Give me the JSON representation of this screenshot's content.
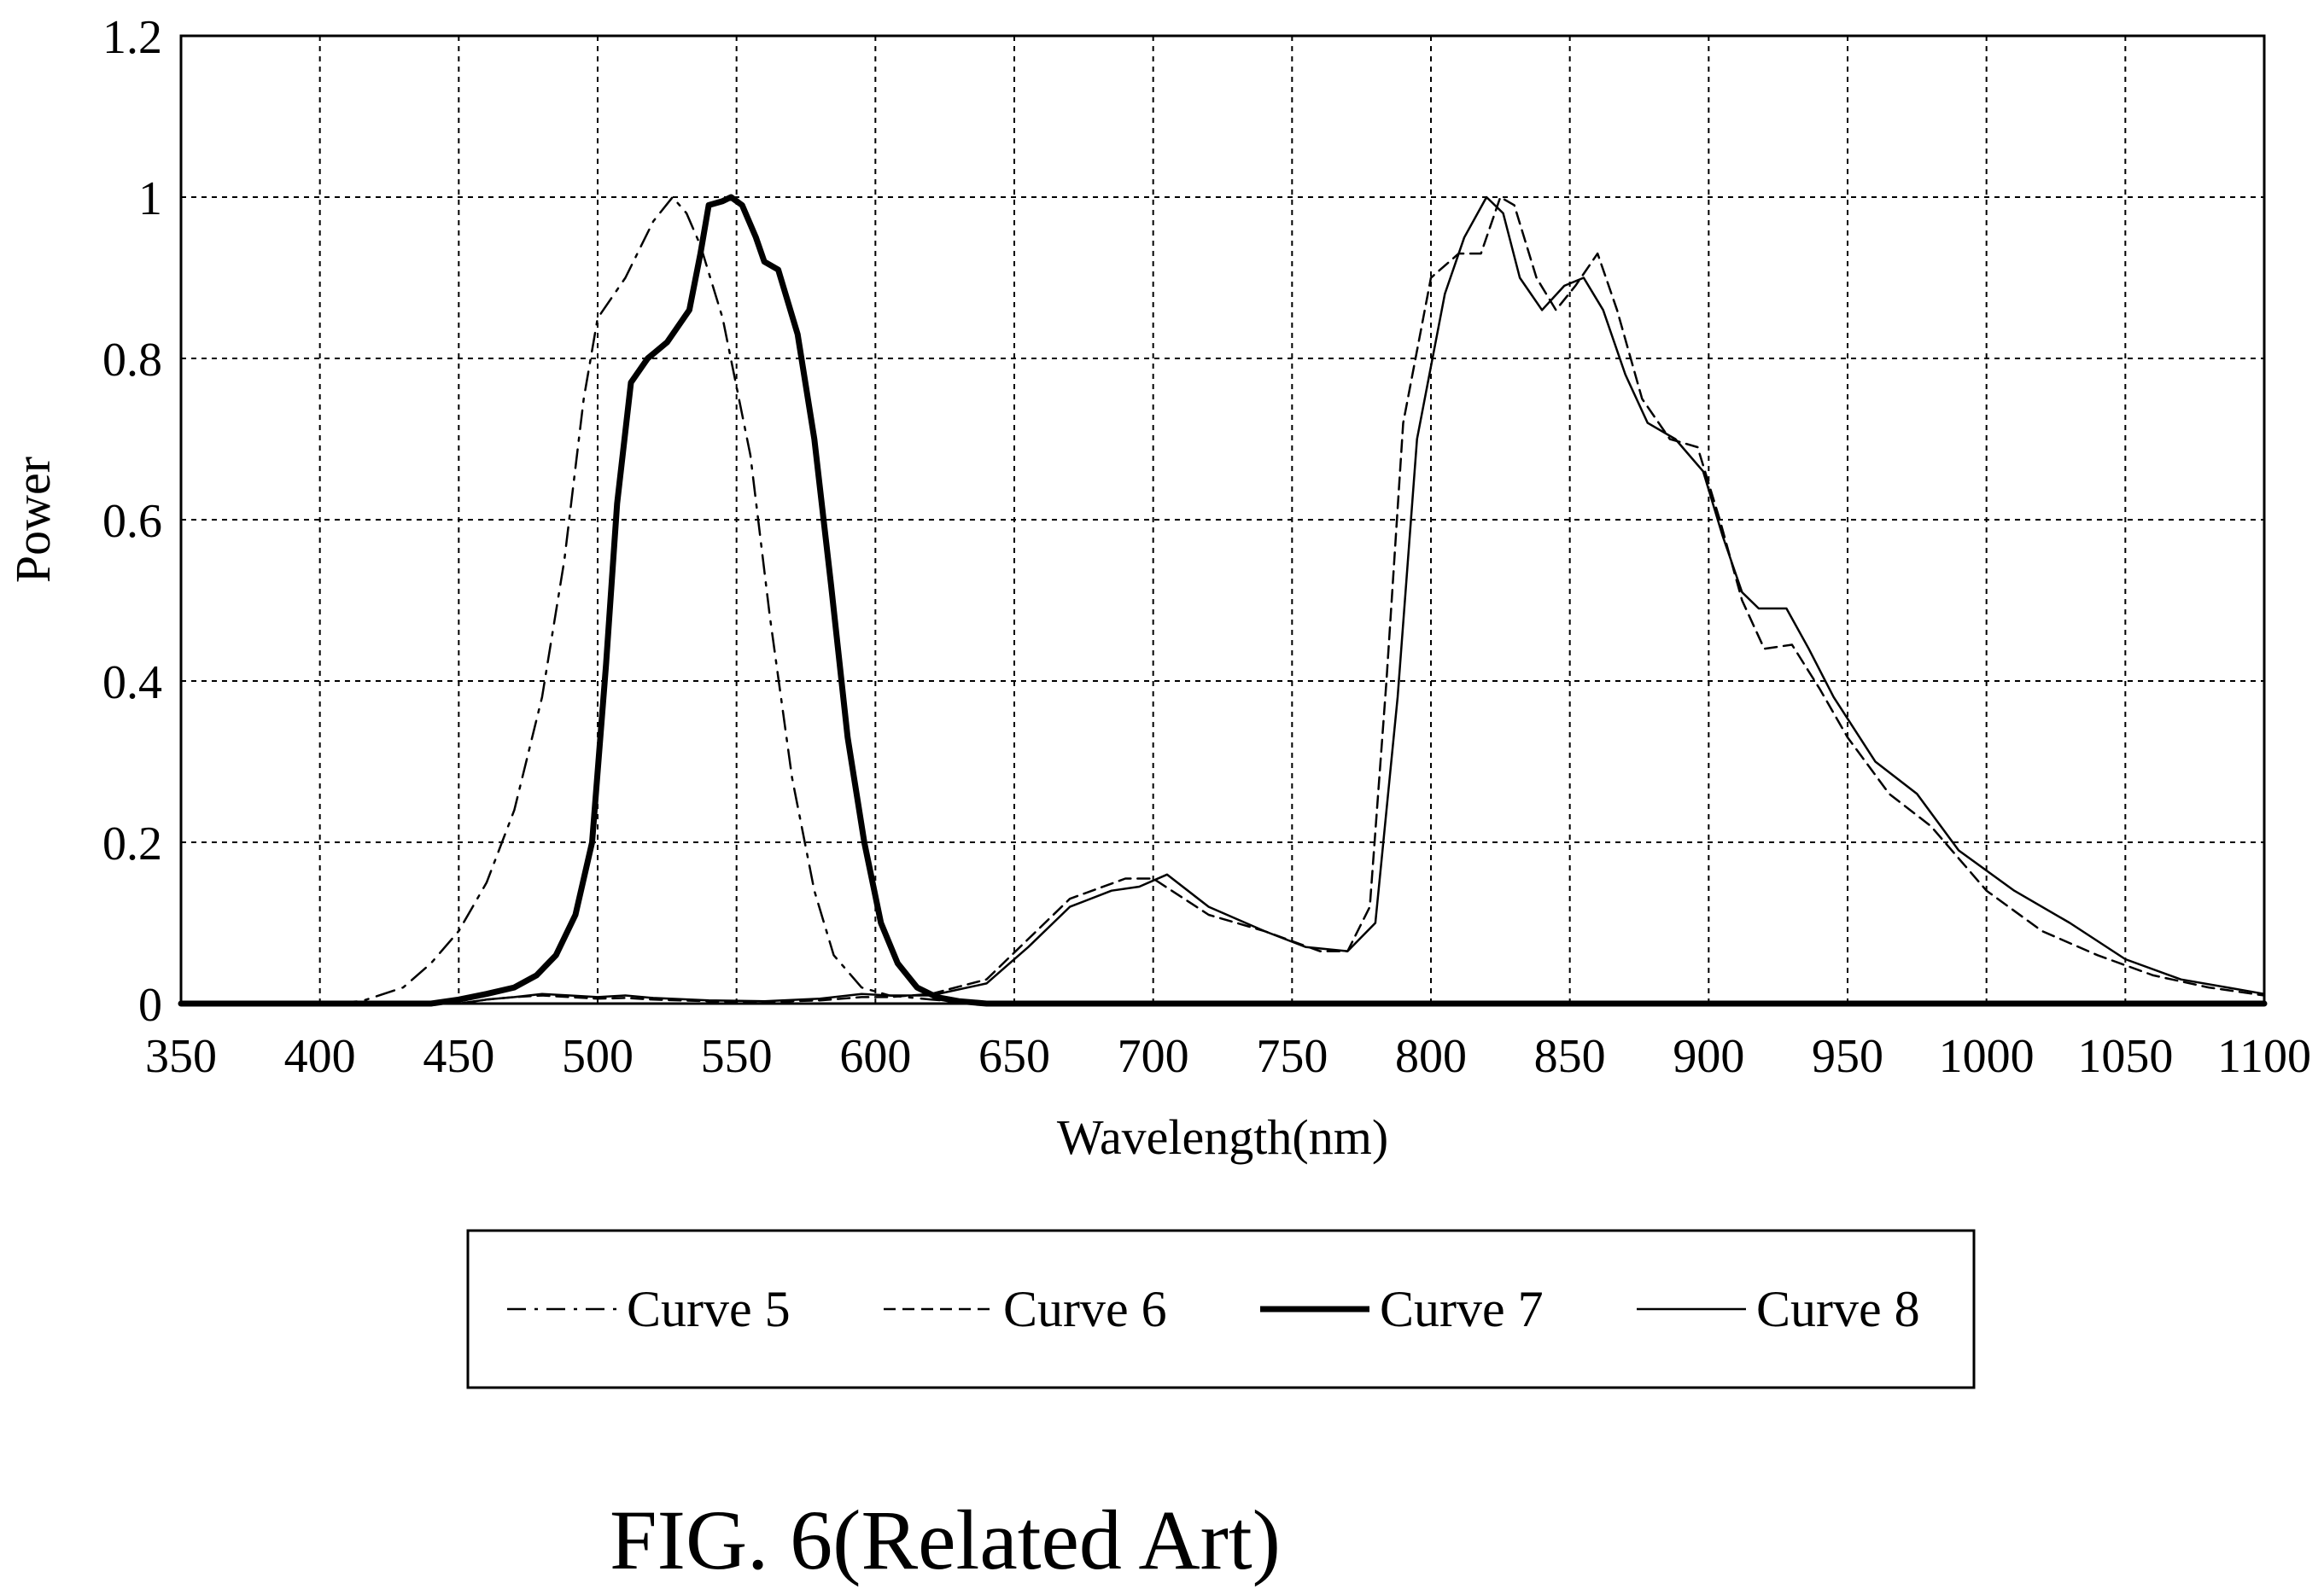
{
  "chart_data": {
    "type": "line",
    "xlabel": "Wavelength(nm)",
    "ylabel": "Power",
    "xlim": [
      350,
      1100
    ],
    "ylim": [
      0,
      1.2
    ],
    "x_ticks": [
      350,
      400,
      450,
      500,
      550,
      600,
      650,
      700,
      750,
      800,
      850,
      900,
      950,
      1000,
      1050,
      1100
    ],
    "y_ticks": [
      0,
      0.2,
      0.4,
      0.6,
      0.8,
      1,
      1.2
    ],
    "grid": true,
    "legend_position": "bottom",
    "series": [
      {
        "name": "Curve 5",
        "style": "dash-dot",
        "color": "#000000",
        "points": [
          [
            350,
            0
          ],
          [
            400,
            0
          ],
          [
            415,
            0.003
          ],
          [
            430,
            0.02
          ],
          [
            440,
            0.05
          ],
          [
            450,
            0.09
          ],
          [
            460,
            0.15
          ],
          [
            470,
            0.24
          ],
          [
            480,
            0.38
          ],
          [
            488,
            0.55
          ],
          [
            495,
            0.75
          ],
          [
            500,
            0.85
          ],
          [
            510,
            0.9
          ],
          [
            520,
            0.97
          ],
          [
            527,
            1.0
          ],
          [
            532,
            0.98
          ],
          [
            537,
            0.94
          ],
          [
            545,
            0.85
          ],
          [
            555,
            0.68
          ],
          [
            562,
            0.48
          ],
          [
            570,
            0.28
          ],
          [
            578,
            0.14
          ],
          [
            585,
            0.06
          ],
          [
            595,
            0.02
          ],
          [
            605,
            0.01
          ],
          [
            620,
            0.005
          ],
          [
            640,
            0
          ],
          [
            700,
            0
          ],
          [
            800,
            0
          ],
          [
            1100,
            0
          ]
        ]
      },
      {
        "name": "Curve 6",
        "style": "dashed",
        "color": "#000000",
        "points": [
          [
            350,
            0
          ],
          [
            450,
            0
          ],
          [
            460,
            0.005
          ],
          [
            470,
            0.008
          ],
          [
            480,
            0.01
          ],
          [
            490,
            0.008
          ],
          [
            500,
            0.006
          ],
          [
            510,
            0.007
          ],
          [
            520,
            0.005
          ],
          [
            540,
            0.003
          ],
          [
            560,
            0.002
          ],
          [
            580,
            0.004
          ],
          [
            595,
            0.008
          ],
          [
            605,
            0.008
          ],
          [
            620,
            0.012
          ],
          [
            640,
            0.03
          ],
          [
            655,
            0.08
          ],
          [
            670,
            0.13
          ],
          [
            690,
            0.155
          ],
          [
            700,
            0.155
          ],
          [
            720,
            0.11
          ],
          [
            740,
            0.09
          ],
          [
            760,
            0.065
          ],
          [
            770,
            0.065
          ],
          [
            778,
            0.12
          ],
          [
            784,
            0.4
          ],
          [
            790,
            0.72
          ],
          [
            800,
            0.9
          ],
          [
            810,
            0.93
          ],
          [
            818,
            0.93
          ],
          [
            825,
            1.0
          ],
          [
            830,
            0.99
          ],
          [
            838,
            0.9
          ],
          [
            845,
            0.86
          ],
          [
            852,
            0.89
          ],
          [
            860,
            0.93
          ],
          [
            867,
            0.86
          ],
          [
            876,
            0.75
          ],
          [
            886,
            0.7
          ],
          [
            896,
            0.69
          ],
          [
            904,
            0.6
          ],
          [
            912,
            0.5
          ],
          [
            920,
            0.44
          ],
          [
            930,
            0.445
          ],
          [
            940,
            0.39
          ],
          [
            950,
            0.33
          ],
          [
            965,
            0.26
          ],
          [
            980,
            0.22
          ],
          [
            1000,
            0.14
          ],
          [
            1020,
            0.09
          ],
          [
            1040,
            0.06
          ],
          [
            1060,
            0.035
          ],
          [
            1080,
            0.02
          ],
          [
            1100,
            0.01
          ]
        ]
      },
      {
        "name": "Curve 7",
        "style": "bold",
        "color": "#000000",
        "points": [
          [
            350,
            0
          ],
          [
            440,
            0
          ],
          [
            450,
            0.005
          ],
          [
            460,
            0.012
          ],
          [
            470,
            0.02
          ],
          [
            478,
            0.035
          ],
          [
            485,
            0.06
          ],
          [
            492,
            0.11
          ],
          [
            498,
            0.2
          ],
          [
            503,
            0.42
          ],
          [
            507,
            0.62
          ],
          [
            512,
            0.77
          ],
          [
            518,
            0.8
          ],
          [
            525,
            0.82
          ],
          [
            533,
            0.86
          ],
          [
            537,
            0.93
          ],
          [
            540,
            0.99
          ],
          [
            545,
            0.995
          ],
          [
            548,
            1.0
          ],
          [
            552,
            0.99
          ],
          [
            557,
            0.95
          ],
          [
            560,
            0.92
          ],
          [
            565,
            0.91
          ],
          [
            572,
            0.83
          ],
          [
            578,
            0.7
          ],
          [
            584,
            0.52
          ],
          [
            590,
            0.33
          ],
          [
            596,
            0.2
          ],
          [
            602,
            0.1
          ],
          [
            608,
            0.05
          ],
          [
            615,
            0.02
          ],
          [
            622,
            0.008
          ],
          [
            630,
            0.003
          ],
          [
            640,
            0
          ],
          [
            800,
            0
          ],
          [
            1100,
            0
          ]
        ]
      },
      {
        "name": "Curve 8",
        "style": "solid",
        "color": "#000000",
        "points": [
          [
            350,
            0
          ],
          [
            450,
            0
          ],
          [
            460,
            0.005
          ],
          [
            470,
            0.008
          ],
          [
            480,
            0.012
          ],
          [
            490,
            0.01
          ],
          [
            500,
            0.008
          ],
          [
            510,
            0.01
          ],
          [
            520,
            0.007
          ],
          [
            540,
            0.004
          ],
          [
            560,
            0.003
          ],
          [
            580,
            0.006
          ],
          [
            595,
            0.012
          ],
          [
            605,
            0.01
          ],
          [
            620,
            0.01
          ],
          [
            640,
            0.025
          ],
          [
            655,
            0.07
          ],
          [
            670,
            0.12
          ],
          [
            685,
            0.14
          ],
          [
            695,
            0.145
          ],
          [
            705,
            0.16
          ],
          [
            720,
            0.12
          ],
          [
            740,
            0.09
          ],
          [
            755,
            0.07
          ],
          [
            770,
            0.065
          ],
          [
            780,
            0.1
          ],
          [
            788,
            0.38
          ],
          [
            795,
            0.7
          ],
          [
            805,
            0.88
          ],
          [
            812,
            0.95
          ],
          [
            820,
            1.0
          ],
          [
            826,
            0.98
          ],
          [
            832,
            0.9
          ],
          [
            840,
            0.86
          ],
          [
            848,
            0.89
          ],
          [
            855,
            0.9
          ],
          [
            862,
            0.86
          ],
          [
            870,
            0.78
          ],
          [
            878,
            0.72
          ],
          [
            888,
            0.7
          ],
          [
            898,
            0.66
          ],
          [
            905,
            0.58
          ],
          [
            912,
            0.51
          ],
          [
            918,
            0.49
          ],
          [
            928,
            0.49
          ],
          [
            936,
            0.44
          ],
          [
            945,
            0.38
          ],
          [
            960,
            0.3
          ],
          [
            975,
            0.26
          ],
          [
            990,
            0.19
          ],
          [
            1010,
            0.14
          ],
          [
            1030,
            0.1
          ],
          [
            1050,
            0.055
          ],
          [
            1070,
            0.03
          ],
          [
            1090,
            0.018
          ],
          [
            1100,
            0.012
          ]
        ]
      }
    ]
  },
  "caption": "FIG. 6(Related Art)"
}
